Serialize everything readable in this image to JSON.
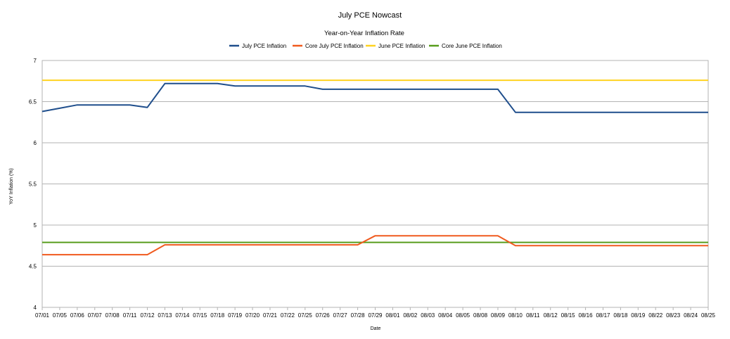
{
  "chart_data": {
    "type": "line",
    "title": "July PCE Nowcast",
    "subtitle": "Year-on-Year Inflation Rate",
    "xlabel": "Date",
    "ylabel": "YoY Inflation (%)",
    "ylim": [
      4,
      7
    ],
    "yticks": [
      "4",
      "4.5",
      "5",
      "5.5",
      "6",
      "6.5",
      "7"
    ],
    "grid": true,
    "legend_position": "top",
    "categories": [
      "07/01",
      "07/05",
      "07/06",
      "07/07",
      "07/08",
      "07/11",
      "07/12",
      "07/13",
      "07/14",
      "07/15",
      "07/18",
      "07/19",
      "07/20",
      "07/21",
      "07/22",
      "07/25",
      "07/26",
      "07/27",
      "07/28",
      "07/29",
      "08/01",
      "08/02",
      "08/03",
      "08/04",
      "08/05",
      "08/08",
      "08/09",
      "08/10",
      "08/11",
      "08/12",
      "08/15",
      "08/16",
      "08/17",
      "08/18",
      "08/19",
      "08/22",
      "08/23",
      "08/24",
      "08/25"
    ],
    "series": [
      {
        "name": "July PCE Inflation",
        "color": "#1f4e8c",
        "values": [
          6.38,
          6.42,
          6.46,
          6.46,
          6.46,
          6.46,
          6.43,
          6.72,
          6.72,
          6.72,
          6.72,
          6.69,
          6.69,
          6.69,
          6.69,
          6.69,
          6.65,
          6.65,
          6.65,
          6.65,
          6.65,
          6.65,
          6.65,
          6.65,
          6.65,
          6.65,
          6.65,
          6.37,
          6.37,
          6.37,
          6.37,
          6.37,
          6.37,
          6.37,
          6.37,
          6.37,
          6.37,
          6.37,
          6.37
        ]
      },
      {
        "name": "Core July PCE Inflation",
        "color": "#f05a1e",
        "values": [
          4.64,
          4.64,
          4.64,
          4.64,
          4.64,
          4.64,
          4.64,
          4.76,
          4.76,
          4.76,
          4.76,
          4.76,
          4.76,
          4.76,
          4.76,
          4.76,
          4.76,
          4.76,
          4.76,
          4.87,
          4.87,
          4.87,
          4.87,
          4.87,
          4.87,
          4.87,
          4.87,
          4.75,
          4.75,
          4.75,
          4.75,
          4.75,
          4.75,
          4.75,
          4.75,
          4.75,
          4.75,
          4.75,
          4.75
        ]
      },
      {
        "name": "June PCE Inflation",
        "color": "#ffd320",
        "values": [
          6.76,
          6.76,
          6.76,
          6.76,
          6.76,
          6.76,
          6.76,
          6.76,
          6.76,
          6.76,
          6.76,
          6.76,
          6.76,
          6.76,
          6.76,
          6.76,
          6.76,
          6.76,
          6.76,
          6.76,
          6.76,
          6.76,
          6.76,
          6.76,
          6.76,
          6.76,
          6.76,
          6.76,
          6.76,
          6.76,
          6.76,
          6.76,
          6.76,
          6.76,
          6.76,
          6.76,
          6.76,
          6.76,
          6.76
        ]
      },
      {
        "name": "Core June PCE Inflation",
        "color": "#579d1c",
        "values": [
          4.79,
          4.79,
          4.79,
          4.79,
          4.79,
          4.79,
          4.79,
          4.79,
          4.79,
          4.79,
          4.79,
          4.79,
          4.79,
          4.79,
          4.79,
          4.79,
          4.79,
          4.79,
          4.79,
          4.79,
          4.79,
          4.79,
          4.79,
          4.79,
          4.79,
          4.79,
          4.79,
          4.79,
          4.79,
          4.79,
          4.79,
          4.79,
          4.79,
          4.79,
          4.79,
          4.79,
          4.79,
          4.79,
          4.79
        ]
      }
    ]
  }
}
